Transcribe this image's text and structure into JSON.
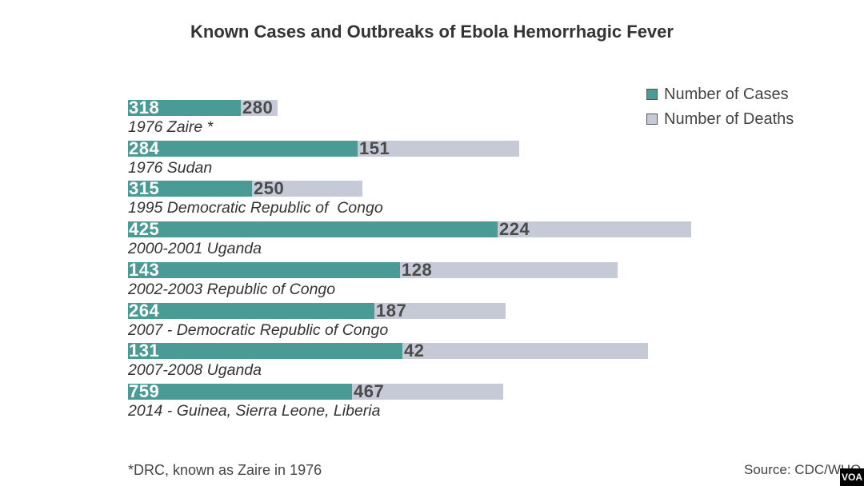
{
  "chart_data": {
    "type": "bar",
    "orientation": "horizontal",
    "title": "Known Cases and Outbreaks of Ebola Hemorrhagic Fever",
    "categories": [
      "1976 Zaire *",
      "1976 Sudan",
      "1995 Democratic Republic of  Congo",
      "2000-2001 Uganda",
      "2002-2003 Republic of Congo",
      "2007 - Democratic Republic of Congo",
      "2007-2008 Uganda",
      "2014 - Guinea, Sierra Leone, Liberia"
    ],
    "series": [
      {
        "name": "Number of Cases",
        "values": [
          318,
          284,
          315,
          425,
          143,
          264,
          131,
          759
        ],
        "color": "#4a9a95"
      },
      {
        "name": "Number of Deaths",
        "values": [
          280,
          151,
          250,
          224,
          128,
          187,
          42,
          467
        ],
        "color": "#c5cad6"
      }
    ],
    "legend": "top-right",
    "grid": false
  },
  "footnote": "*DRC, known as Zaire in 1976",
  "source": "Source: CDC/WHO",
  "logo": "VOA"
}
